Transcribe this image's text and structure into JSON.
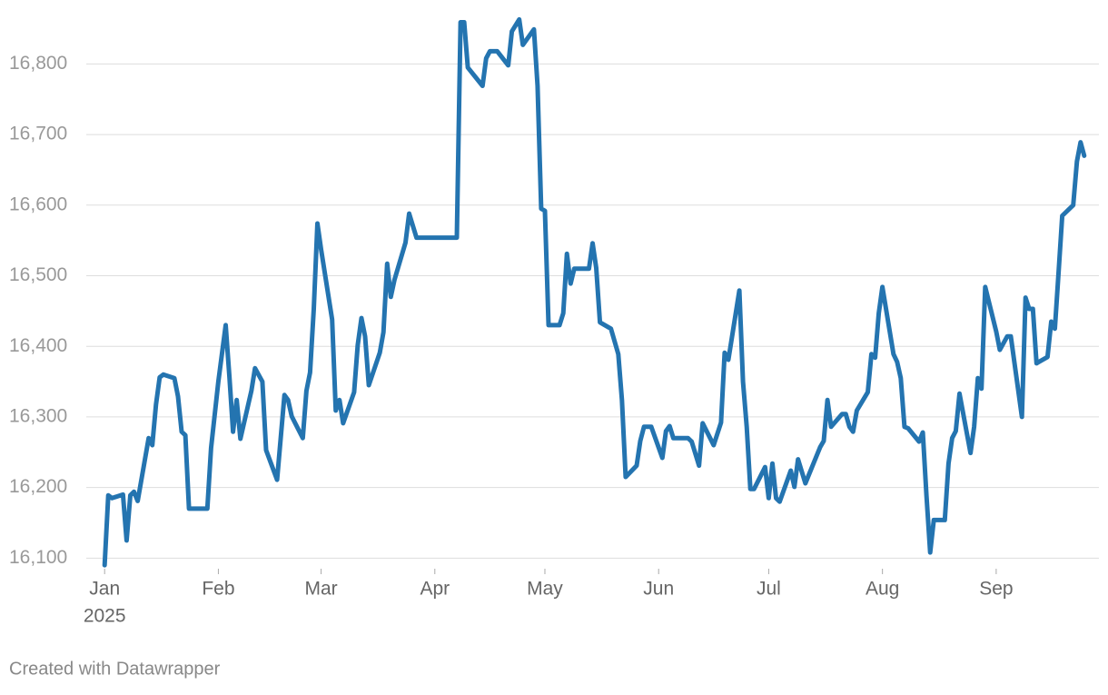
{
  "chart_data": {
    "type": "line",
    "color": "#2474b0",
    "grid": true,
    "x": [
      0,
      1,
      2,
      5,
      6,
      7,
      8,
      9,
      12,
      13,
      14,
      15,
      16,
      19,
      20,
      21,
      22,
      23,
      28,
      29,
      31,
      33,
      34,
      35,
      36,
      37,
      40,
      41,
      43,
      44,
      47,
      49,
      50,
      51,
      54,
      55,
      56,
      57,
      58,
      59,
      62,
      63,
      64,
      65,
      68,
      69,
      70,
      71,
      72,
      75,
      76,
      77,
      78,
      79,
      82,
      83,
      85,
      96,
      97,
      98,
      99,
      103,
      104,
      105,
      107,
      110,
      111,
      113,
      114,
      117,
      118,
      119,
      120,
      121,
      124,
      125,
      126,
      127,
      128,
      132,
      133,
      134,
      135,
      138,
      140,
      141,
      142,
      145,
      146,
      147,
      149,
      152,
      153,
      154,
      155,
      159,
      160,
      162,
      163,
      166,
      168,
      169,
      170,
      173,
      174,
      175,
      176,
      177,
      180,
      181,
      182,
      183,
      184,
      187,
      188,
      189,
      191,
      195,
      196,
      197,
      198,
      201,
      202,
      203,
      204,
      205,
      208,
      209,
      210,
      211,
      212,
      215,
      216,
      217,
      218,
      219,
      222,
      223,
      224,
      225,
      226,
      229,
      230,
      231,
      232,
      233,
      236,
      237,
      238,
      239,
      240,
      243,
      244,
      246,
      247,
      250,
      251,
      252,
      253,
      254,
      257,
      258,
      259,
      260,
      261,
      264,
      265,
      266,
      267
    ],
    "values": [
      16090,
      16189,
      16185,
      16190,
      16125,
      16189,
      16194,
      16181,
      16270,
      16260,
      16318,
      16356,
      16360,
      16355,
      16329,
      16279,
      16274,
      16170,
      16170,
      16256,
      16350,
      16430,
      16357,
      16279,
      16324,
      16269,
      16337,
      16369,
      16350,
      16253,
      16211,
      16331,
      16324,
      16301,
      16270,
      16337,
      16363,
      16453,
      16574,
      16537,
      16438,
      16309,
      16324,
      16291,
      16335,
      16402,
      16440,
      16414,
      16345,
      16391,
      16420,
      16517,
      16470,
      16494,
      16547,
      16588,
      16554,
      16554,
      16859,
      16859,
      16795,
      16769,
      16808,
      16818,
      16818,
      16798,
      16846,
      16863,
      16827,
      16849,
      16769,
      16595,
      16592,
      16430,
      16430,
      16447,
      16531,
      16489,
      16510,
      16510,
      16546,
      16511,
      16434,
      16425,
      16389,
      16324,
      16215,
      16231,
      16266,
      16286,
      16286,
      16242,
      16280,
      16287,
      16270,
      16270,
      16265,
      16231,
      16291,
      16260,
      16292,
      16391,
      16381,
      16479,
      16350,
      16286,
      16198,
      16198,
      16229,
      16185,
      16234,
      16185,
      16180,
      16224,
      16201,
      16240,
      16206,
      16257,
      16266,
      16324,
      16286,
      16304,
      16304,
      16286,
      16279,
      16309,
      16335,
      16389,
      16384,
      16447,
      16484,
      16389,
      16378,
      16355,
      16286,
      16284,
      16265,
      16278,
      16189,
      16108,
      16154,
      16154,
      16234,
      16270,
      16280,
      16333,
      16249,
      16286,
      16355,
      16340,
      16484,
      16421,
      16395,
      16414,
      16414,
      16300,
      16469,
      16453,
      16453,
      16376,
      16385,
      16435,
      16425,
      16505,
      16585,
      16600,
      16662,
      16689,
      16670
    ],
    "xlim": [
      -5,
      271
    ],
    "xticks": [
      {
        "value": 0,
        "label": "Jan"
      },
      {
        "value": 31,
        "label": "Feb"
      },
      {
        "value": 59,
        "label": "Mar"
      },
      {
        "value": 90,
        "label": "Apr"
      },
      {
        "value": 120,
        "label": "May"
      },
      {
        "value": 151,
        "label": "Jun"
      },
      {
        "value": 181,
        "label": "Jul"
      },
      {
        "value": 212,
        "label": "Aug"
      },
      {
        "value": 243,
        "label": "Sep"
      }
    ],
    "x_year_label": "2025",
    "ylim": [
      16085,
      16870
    ],
    "yticks": [
      {
        "value": 16100,
        "label": "16,100"
      },
      {
        "value": 16200,
        "label": "16,200"
      },
      {
        "value": 16300,
        "label": "16,300"
      },
      {
        "value": 16400,
        "label": "16,400"
      },
      {
        "value": 16500,
        "label": "16,500"
      },
      {
        "value": 16600,
        "label": "16,600"
      },
      {
        "value": 16700,
        "label": "16,700"
      },
      {
        "value": 16800,
        "label": "16,800"
      }
    ],
    "footer": "Created with Datawrapper"
  }
}
